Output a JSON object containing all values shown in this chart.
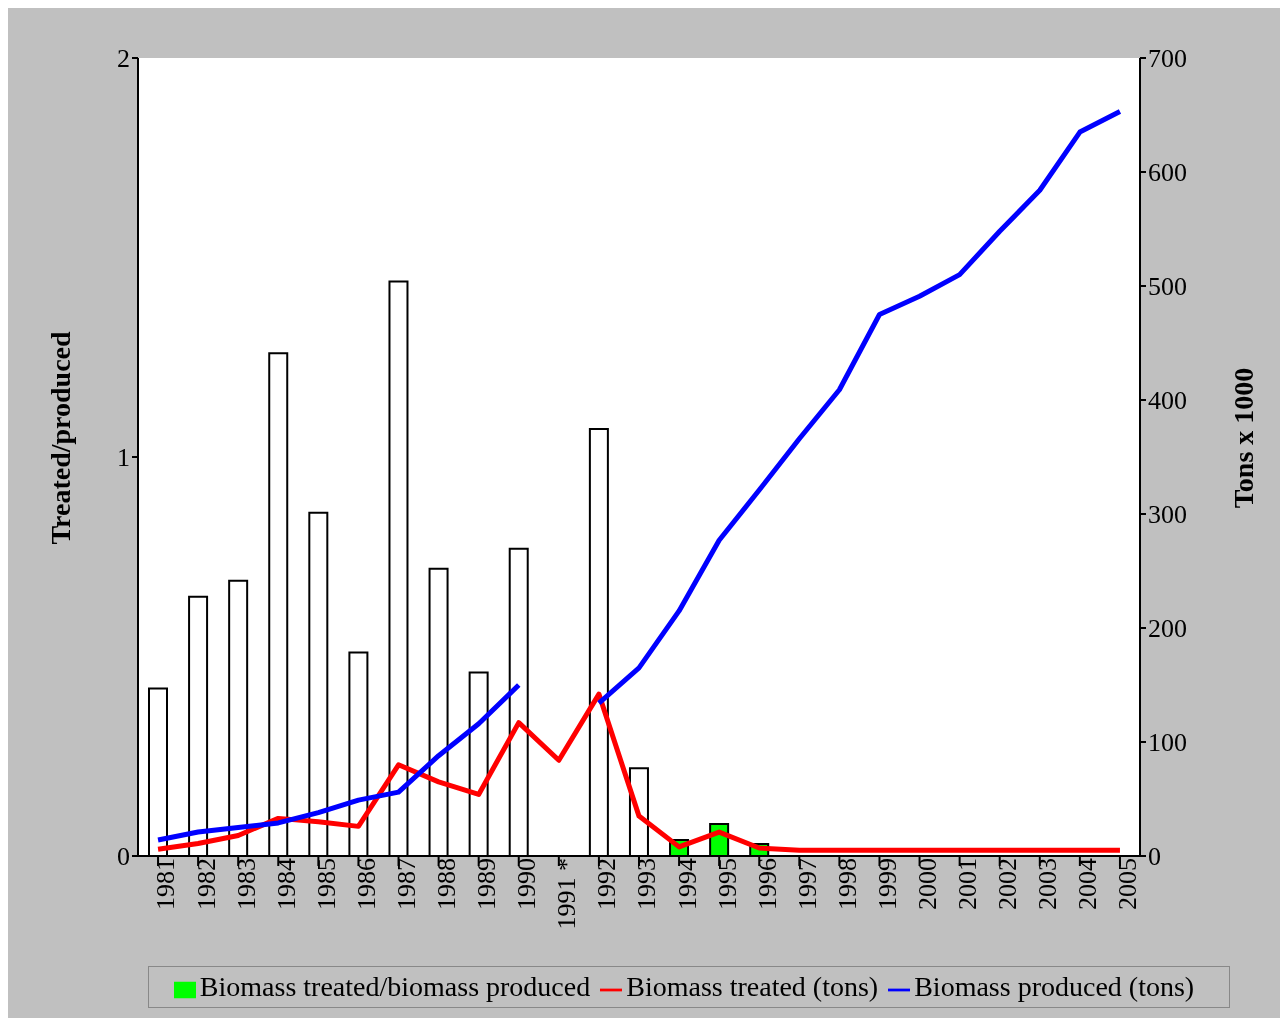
{
  "chart_data": {
    "type": "bar",
    "categories": [
      "1981",
      "1982",
      "1983",
      "1984",
      "1985",
      "1986",
      "1987",
      "1988",
      "1989",
      "1990",
      "1991 *",
      "1992",
      "1993",
      "1994",
      "1995",
      "1996",
      "1997",
      "1998",
      "1999",
      "2000",
      "2001",
      "2002",
      "2003",
      "2004",
      "2005"
    ],
    "series": [
      {
        "name": "Biomass treated/biomass produced",
        "color": "#00ff00",
        "colors": [
          "#ffffff",
          "#ffffff",
          "#ffffff",
          "#ffffff",
          "#ffffff",
          "#ffffff",
          "#ffffff",
          "#ffffff",
          "#ffffff",
          "#ffffff",
          "#ffffff",
          "#ffffff",
          "#ffffff",
          "#00ff00",
          "#00ff00",
          "#00ff00",
          "#00ff00",
          "#00ff00",
          "#00ff00",
          "#00ff00",
          "#00ff00",
          "#00ff00",
          "#00ff00",
          "#00ff00",
          "#00ff00"
        ],
        "values": [
          0.42,
          0.65,
          0.69,
          1.26,
          0.86,
          0.51,
          1.44,
          0.72,
          0.46,
          0.77,
          null,
          1.07,
          0.22,
          0.04,
          0.08,
          0.03,
          0,
          0,
          0,
          0,
          0,
          0,
          0,
          0,
          0
        ]
      },
      {
        "name": "Biomass treated (tons)",
        "type": "line",
        "axis": "y2",
        "color": "#ff0000",
        "values": [
          6,
          11,
          18,
          33,
          30,
          26,
          80,
          65,
          54,
          117,
          84,
          142,
          35,
          8,
          21,
          7,
          5,
          5,
          5,
          5,
          5,
          5,
          5,
          5,
          5
        ]
      },
      {
        "name": "Biomass produced (tons)",
        "type": "line",
        "axis": "y2",
        "color": "#0000ff",
        "values": [
          14,
          21,
          25,
          29,
          38,
          49,
          56,
          88,
          116,
          150,
          null,
          134,
          165,
          215,
          277,
          321,
          366,
          409,
          475,
          491,
          510,
          548,
          584,
          635,
          653
        ]
      }
    ],
    "ylabel": "Treated/produced",
    "y2label": "Tons x 1000",
    "ylim": [
      0,
      2
    ],
    "yticks": [
      0,
      1,
      2
    ],
    "y2lim": [
      0,
      700
    ],
    "y2ticks": [
      0,
      100,
      200,
      300,
      400,
      500,
      600,
      700
    ],
    "legend": "bottom",
    "grid": false,
    "marker": "none",
    "line_style": "solid"
  }
}
